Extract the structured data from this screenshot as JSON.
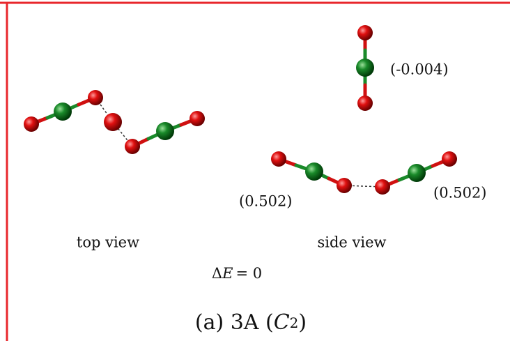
{
  "charges": [
    "(-0.004)",
    "(0.502)",
    "(0.502)"
  ],
  "views": [
    "top view",
    "side view"
  ],
  "energy": {
    "delta": "Δ",
    "symbol": "E",
    "rest": "= 0"
  },
  "caption": {
    "prefix": "(a) 3A (",
    "symmetry": "C",
    "subscript": "2",
    "suffix": ")"
  }
}
